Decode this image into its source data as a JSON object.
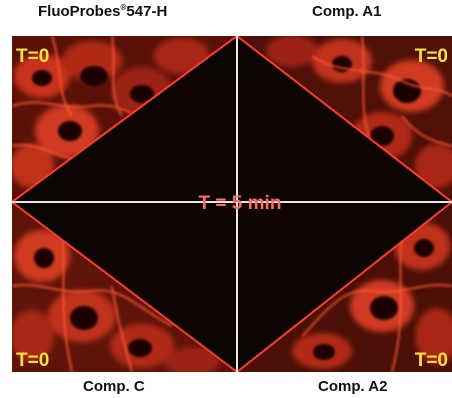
{
  "labels": {
    "top_left": "FluoProbes",
    "top_left_reg": "®",
    "top_left_suffix": "547-H",
    "top_right": "Comp. A1",
    "bottom_left": "Comp. C",
    "bottom_right": "Comp. A2"
  },
  "corner_time": "T=0",
  "center_time": "T = 5 min",
  "colors": {
    "cell_signal": "#e0402a",
    "diamond_outline": "#ff3b2f",
    "cross_lines": "#ffffff",
    "corner_text": "#f7e33a",
    "center_text": "#ff6b63",
    "background": "#0a0503"
  }
}
